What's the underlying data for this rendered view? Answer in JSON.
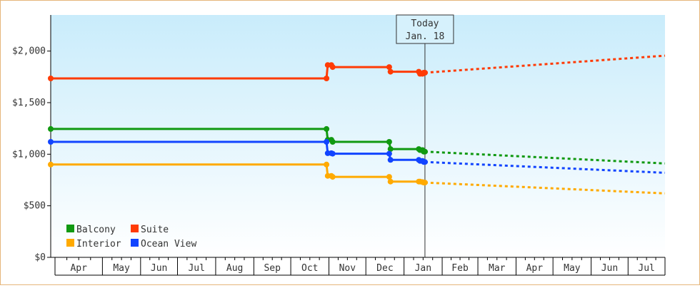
{
  "chart_data": {
    "type": "line",
    "title": "",
    "xlabel": "",
    "ylabel": "",
    "ylim": [
      0,
      2350
    ],
    "yticks": [
      {
        "value": 0,
        "label": "$0"
      },
      {
        "value": 500,
        "label": "$500"
      },
      {
        "value": 1000,
        "label": "$1,000"
      },
      {
        "value": 1500,
        "label": "$1,500"
      },
      {
        "value": 2000,
        "label": "$2,000"
      }
    ],
    "x_axis": {
      "type": "date",
      "start": "2019-03-20",
      "end": "2020-07-31",
      "months": [
        {
          "label": "Apr",
          "start": "2019-04-01"
        },
        {
          "label": "May",
          "start": "2019-05-01"
        },
        {
          "label": "Jun",
          "start": "2019-06-01"
        },
        {
          "label": "Jul",
          "start": "2019-07-01"
        },
        {
          "label": "Aug",
          "start": "2019-08-01"
        },
        {
          "label": "Sep",
          "start": "2019-09-01"
        },
        {
          "label": "Oct",
          "start": "2019-10-01"
        },
        {
          "label": "Nov",
          "start": "2019-11-01"
        },
        {
          "label": "Dec",
          "start": "2019-12-01"
        },
        {
          "label": "Jan",
          "start": "2020-01-01"
        },
        {
          "label": "Feb",
          "start": "2020-02-01"
        },
        {
          "label": "Mar",
          "start": "2020-03-01"
        },
        {
          "label": "Apr",
          "start": "2020-04-01"
        },
        {
          "label": "May",
          "start": "2020-05-01"
        },
        {
          "label": "Jun",
          "start": "2020-06-01"
        },
        {
          "label": "Jul",
          "start": "2020-07-01"
        }
      ]
    },
    "today": {
      "date": "2020-01-18",
      "label_line1": "Today",
      "label_line2": "Jan. 18"
    },
    "legend_position": "bottom-left",
    "grid": false,
    "series": [
      {
        "name": "Suite",
        "color": "#ff3b05",
        "history": [
          {
            "x": "2019-03-20",
            "y": 1735
          },
          {
            "x": "2019-10-30",
            "y": 1735
          },
          {
            "x": "2019-10-31",
            "y": 1865
          },
          {
            "x": "2019-11-03",
            "y": 1865
          },
          {
            "x": "2019-11-04",
            "y": 1845
          },
          {
            "x": "2019-12-20",
            "y": 1845
          },
          {
            "x": "2019-12-21",
            "y": 1800
          },
          {
            "x": "2020-01-13",
            "y": 1800
          },
          {
            "x": "2020-01-14",
            "y": 1780
          },
          {
            "x": "2020-01-16",
            "y": 1780
          },
          {
            "x": "2020-01-17",
            "y": 1790
          },
          {
            "x": "2020-01-18",
            "y": 1790
          }
        ],
        "forecast": [
          {
            "x": "2020-01-18",
            "y": 1790
          },
          {
            "x": "2020-07-31",
            "y": 1955
          }
        ]
      },
      {
        "name": "Balcony",
        "color": "#119911",
        "history": [
          {
            "x": "2019-03-20",
            "y": 1245
          },
          {
            "x": "2019-10-30",
            "y": 1245
          },
          {
            "x": "2019-10-31",
            "y": 1140
          },
          {
            "x": "2019-11-03",
            "y": 1140
          },
          {
            "x": "2019-11-04",
            "y": 1120
          },
          {
            "x": "2019-12-20",
            "y": 1120
          },
          {
            "x": "2019-12-21",
            "y": 1050
          },
          {
            "x": "2020-01-13",
            "y": 1050
          },
          {
            "x": "2020-01-14",
            "y": 1040
          },
          {
            "x": "2020-01-16",
            "y": 1040
          },
          {
            "x": "2020-01-17",
            "y": 1025
          },
          {
            "x": "2020-01-18",
            "y": 1025
          }
        ],
        "forecast": [
          {
            "x": "2020-01-18",
            "y": 1025
          },
          {
            "x": "2020-07-31",
            "y": 910
          }
        ]
      },
      {
        "name": "Ocean View",
        "color": "#1144ff",
        "history": [
          {
            "x": "2019-03-20",
            "y": 1120
          },
          {
            "x": "2019-10-30",
            "y": 1120
          },
          {
            "x": "2019-10-31",
            "y": 1010
          },
          {
            "x": "2019-11-03",
            "y": 1010
          },
          {
            "x": "2019-11-04",
            "y": 1005
          },
          {
            "x": "2019-12-20",
            "y": 1005
          },
          {
            "x": "2019-12-21",
            "y": 945
          },
          {
            "x": "2020-01-13",
            "y": 945
          },
          {
            "x": "2020-01-14",
            "y": 935
          },
          {
            "x": "2020-01-16",
            "y": 935
          },
          {
            "x": "2020-01-17",
            "y": 925
          },
          {
            "x": "2020-01-18",
            "y": 925
          }
        ],
        "forecast": [
          {
            "x": "2020-01-18",
            "y": 925
          },
          {
            "x": "2020-07-31",
            "y": 820
          }
        ]
      },
      {
        "name": "Interior",
        "color": "#ffaa00",
        "history": [
          {
            "x": "2019-03-20",
            "y": 900
          },
          {
            "x": "2019-10-30",
            "y": 900
          },
          {
            "x": "2019-10-31",
            "y": 790
          },
          {
            "x": "2019-11-03",
            "y": 790
          },
          {
            "x": "2019-11-04",
            "y": 780
          },
          {
            "x": "2019-12-20",
            "y": 780
          },
          {
            "x": "2019-12-21",
            "y": 735
          },
          {
            "x": "2020-01-13",
            "y": 735
          },
          {
            "x": "2020-01-14",
            "y": 735
          },
          {
            "x": "2020-01-16",
            "y": 730
          },
          {
            "x": "2020-01-17",
            "y": 725
          },
          {
            "x": "2020-01-18",
            "y": 725
          }
        ],
        "forecast": [
          {
            "x": "2020-01-18",
            "y": 725
          },
          {
            "x": "2020-07-31",
            "y": 620
          }
        ]
      }
    ],
    "legend": [
      {
        "name": "Balcony",
        "color": "#119911"
      },
      {
        "name": "Suite",
        "color": "#ff3b05"
      },
      {
        "name": "Interior",
        "color": "#ffaa00"
      },
      {
        "name": "Ocean View",
        "color": "#1144ff"
      }
    ],
    "colors": {
      "plot_bg_top": "#c9ecfb",
      "plot_bg_bottom": "#ffffff",
      "frame": "#e6b57a"
    }
  }
}
